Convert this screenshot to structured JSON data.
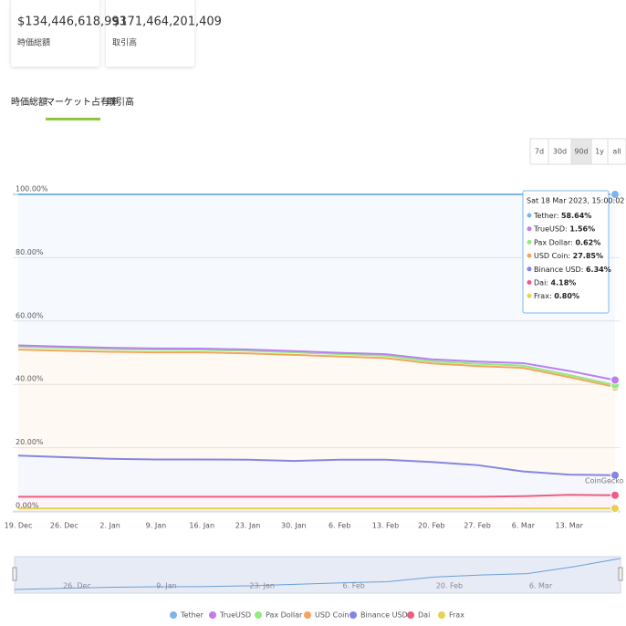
{
  "header": {
    "cards": [
      {
        "value": "$134,446,618,993",
        "label": "時価総額"
      },
      {
        "value": "$171,464,201,409",
        "label": "取引高"
      }
    ]
  },
  "tabs": [
    "時価総額",
    "マーケット占有率",
    "取引高"
  ],
  "ranges": [
    "7d",
    "30d",
    "90d",
    "1y",
    "all"
  ],
  "chart_data": {
    "type": "stacked-area",
    "stacking": "percent",
    "categories": [
      "19. Dec",
      "26. Dec",
      "2. Jan",
      "9. Jan",
      "16. Jan",
      "23. Jan",
      "30. Jan",
      "6. Feb",
      "13. Feb",
      "20. Feb",
      "27. Feb",
      "6. Mar",
      "13. Mar",
      null
    ],
    "ylim": [
      0,
      100
    ],
    "yticks": [
      {
        "value": 0,
        "label": "0.00%"
      },
      {
        "value": 20,
        "label": "20.00%"
      },
      {
        "value": 40,
        "label": "40.00%"
      },
      {
        "value": 60,
        "label": "60.00%"
      },
      {
        "value": 80,
        "label": "80.00%"
      },
      {
        "value": 100,
        "label": "100.00%"
      }
    ],
    "grid": true,
    "tooltip": "Sat 18 Mar 2023, 15:00:02",
    "watermark": "CoinGecko",
    "series": [
      {
        "name": "Tether",
        "color": "#7cb5ec",
        "values": [
          47.7,
          48.1,
          48.45,
          48.65,
          48.7,
          49.0,
          49.5,
          50.05,
          50.45,
          52.1,
          52.8,
          53.3,
          55.75,
          58.64
        ],
        "value_labels": [
          null,
          null,
          null,
          null,
          null,
          null,
          null,
          null,
          null,
          null,
          null,
          null,
          null,
          "58.64%"
        ]
      },
      {
        "name": "TrueUSD",
        "color": "#bf7cf0",
        "values": [
          0.4,
          0.4,
          0.4,
          0.4,
          0.4,
          0.4,
          0.4,
          0.4,
          0.5,
          0.6,
          0.7,
          0.8,
          1.3,
          1.56
        ],
        "value_labels": [
          null,
          null,
          null,
          null,
          null,
          null,
          null,
          null,
          null,
          null,
          null,
          null,
          null,
          "1.56%"
        ]
      },
      {
        "name": "Pax Dollar",
        "color": "#90ed7d",
        "values": [
          0.9,
          0.9,
          0.85,
          0.85,
          0.8,
          0.8,
          0.8,
          0.75,
          0.75,
          0.7,
          0.7,
          0.7,
          0.65,
          0.62
        ],
        "value_labels": [
          null,
          null,
          null,
          null,
          null,
          null,
          null,
          null,
          null,
          null,
          null,
          null,
          null,
          "0.62%"
        ]
      },
      {
        "name": "USD Coin",
        "color": "#f7a35c",
        "values": [
          33.5,
          33.6,
          33.8,
          33.8,
          33.8,
          33.6,
          33.5,
          32.6,
          32.1,
          31.1,
          31.3,
          32.7,
          30.8,
          27.85
        ],
        "value_labels": [
          null,
          null,
          null,
          null,
          null,
          null,
          null,
          null,
          null,
          null,
          null,
          null,
          null,
          "27.85%"
        ]
      },
      {
        "name": "Binance USD",
        "color": "#8085e9",
        "values": [
          13.0,
          12.5,
          12.0,
          11.8,
          11.8,
          11.7,
          11.3,
          11.7,
          11.7,
          11.0,
          10.0,
          7.8,
          6.4,
          6.34
        ],
        "value_labels": [
          null,
          null,
          null,
          null,
          null,
          null,
          null,
          null,
          null,
          null,
          null,
          null,
          null,
          "6.34%"
        ]
      },
      {
        "name": "Dai",
        "color": "#f15c80",
        "values": [
          3.7,
          3.7,
          3.7,
          3.7,
          3.7,
          3.7,
          3.7,
          3.7,
          3.7,
          3.7,
          3.7,
          3.9,
          4.3,
          4.18
        ],
        "value_labels": [
          null,
          null,
          null,
          null,
          null,
          null,
          null,
          null,
          null,
          null,
          null,
          null,
          null,
          "4.18%"
        ]
      },
      {
        "name": "Frax",
        "color": "#e4d354",
        "values": [
          0.8,
          0.8,
          0.8,
          0.8,
          0.8,
          0.8,
          0.8,
          0.8,
          0.8,
          0.8,
          0.8,
          0.8,
          0.8,
          0.8
        ],
        "value_labels": [
          null,
          null,
          null,
          null,
          null,
          null,
          null,
          null,
          null,
          null,
          null,
          null,
          null,
          "0.80%"
        ]
      }
    ]
  }
}
